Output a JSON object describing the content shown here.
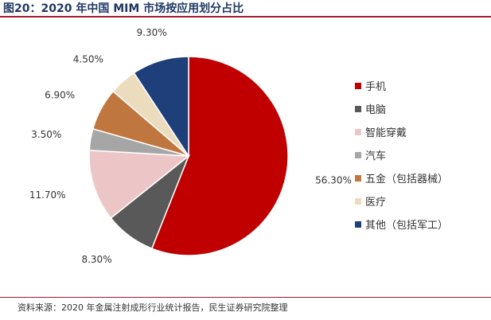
{
  "header": {
    "title": "图20：2020 年中国 MIM 市场按应用划分占比"
  },
  "footer": {
    "source": "资料来源：2020 年金属注射成形行业统计报告，民生证券研究院整理"
  },
  "chart_data": {
    "type": "pie",
    "title": "",
    "legend_position": "right",
    "categories": [
      "手机",
      "电脑",
      "智能穿戴",
      "汽车",
      "五金（包括器械）",
      "医疗",
      "其他（包括军工）"
    ],
    "values": [
      56.3,
      8.3,
      11.7,
      3.5,
      6.9,
      4.5,
      9.3
    ],
    "value_labels": [
      "56.30%",
      "8.30%",
      "11.70%",
      "3.50%",
      "6.90%",
      "4.50%",
      "9.30%"
    ],
    "colors": [
      "#c00000",
      "#595959",
      "#ecc6c6",
      "#a6a6a6",
      "#c0773f",
      "#ecdcbe",
      "#1f3f7a"
    ]
  }
}
